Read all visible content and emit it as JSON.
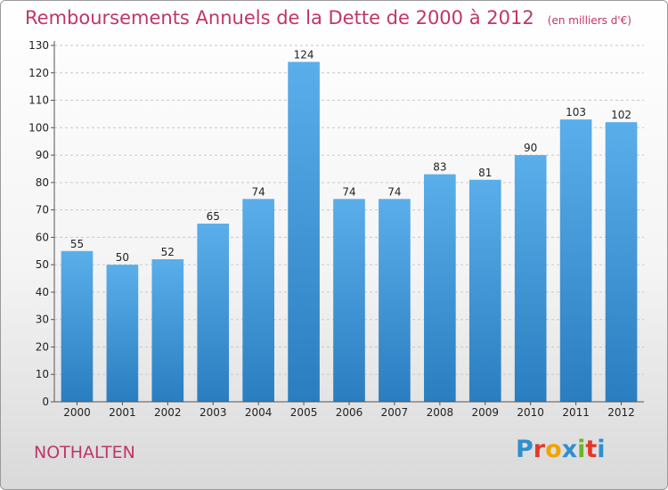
{
  "chart_data": {
    "type": "bar",
    "title": "Remboursements Annuels de la Dette de 2000 à 2012",
    "subtitle": "(en milliers d'€)",
    "categories": [
      "2000",
      "2001",
      "2002",
      "2003",
      "2004",
      "2005",
      "2006",
      "2007",
      "2008",
      "2009",
      "2010",
      "2011",
      "2012"
    ],
    "values": [
      55,
      50,
      52,
      65,
      74,
      124,
      74,
      74,
      83,
      81,
      90,
      103,
      102
    ],
    "ylim": [
      0,
      130
    ],
    "yticks": [
      0,
      10,
      20,
      30,
      40,
      50,
      60,
      70,
      80,
      90,
      100,
      110,
      120,
      130
    ],
    "grid": true,
    "xlabel": "",
    "ylabel": ""
  },
  "footer": {
    "commune": "NOTHALTEN",
    "logo_letters": [
      "P",
      "r",
      "o",
      "x",
      "i",
      "t",
      "i"
    ],
    "logo_colors": [
      "#2f8fd0",
      "#e23a2a",
      "#f0a400",
      "#2f8fd0",
      "#6bb52a",
      "#e23a2a",
      "#2f8fd0"
    ]
  },
  "colors": {
    "bar_top": "#5aaeea",
    "bar_bottom": "#2a7ec0",
    "accent": "#c0356a"
  }
}
